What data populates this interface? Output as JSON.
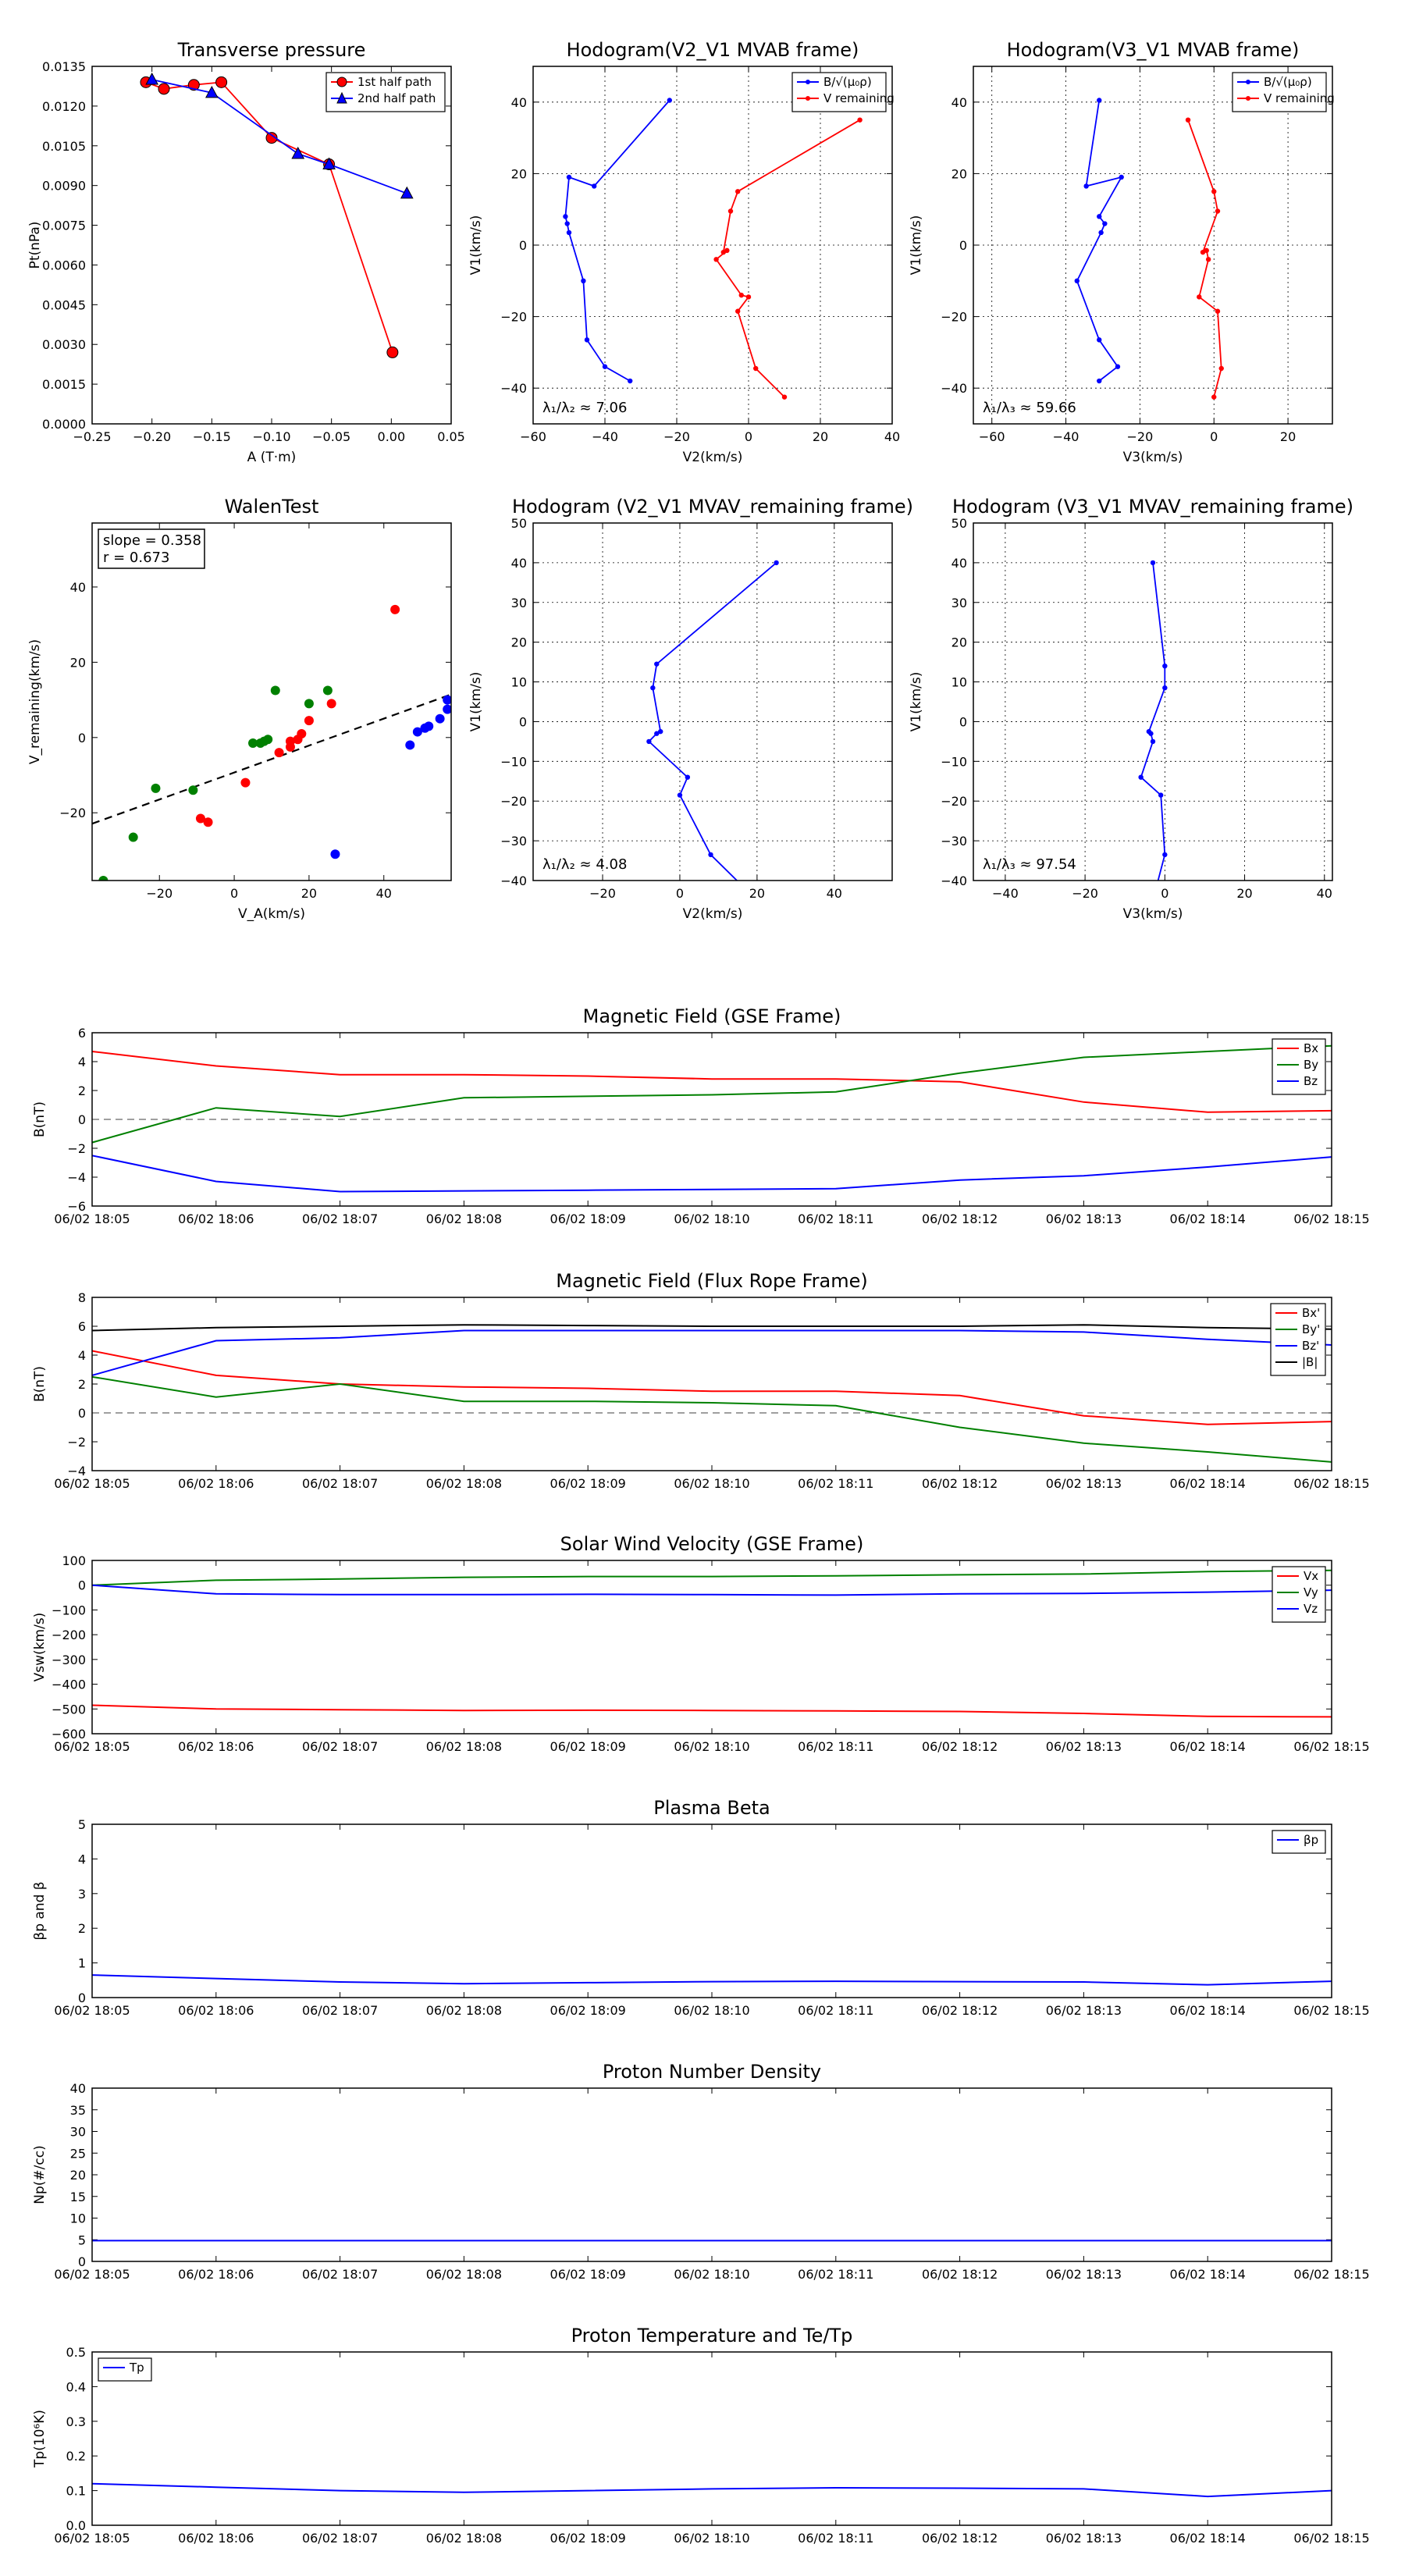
{
  "chart_data": [
    {
      "id": "transverse_pressure",
      "type": "scatter",
      "title": "Transverse pressure",
      "xlabel": "A (T·m)",
      "ylabel": "Pt(nPa)",
      "xlim": [
        -0.25,
        0.05
      ],
      "ylim": [
        0.0,
        0.0135
      ],
      "xticks": [
        -0.25,
        -0.2,
        -0.15,
        -0.1,
        -0.05,
        0.0,
        0.05
      ],
      "xtick_labels": [
        "−0.25",
        "−0.20",
        "−0.15",
        "−0.10",
        "−0.05",
        "0.00",
        "0.05"
      ],
      "yticks": [
        0,
        0.0015,
        0.003,
        0.0045,
        0.006,
        0.0075,
        0.009,
        0.0105,
        0.012,
        0.0135
      ],
      "ytick_labels": [
        "0.0000",
        "0.0015",
        "0.0030",
        "0.0045",
        "0.0060",
        "0.0075",
        "0.0090",
        "0.0105",
        "0.0120",
        "0.0135"
      ],
      "grid": false,
      "legend": "top-right",
      "series": [
        {
          "name": "1st half path",
          "color": "#ff0000",
          "marker": "circle",
          "x": [
            -0.205,
            -0.19,
            -0.165,
            -0.142,
            -0.1,
            -0.052,
            0.001
          ],
          "y": [
            0.0129,
            0.01265,
            0.0128,
            0.0129,
            0.0108,
            0.0098,
            0.0027
          ]
        },
        {
          "name": "2nd half path",
          "color": "#0000ff",
          "marker": "triangle",
          "x": [
            -0.2,
            -0.15,
            -0.078,
            -0.052,
            0.013
          ],
          "y": [
            0.013,
            0.0125,
            0.0102,
            0.0098,
            0.0087
          ]
        }
      ]
    },
    {
      "id": "hodogram_v2v1_mvab",
      "type": "line",
      "title": "Hodogram(V2_V1 MVAB frame)",
      "xlabel": "V2(km/s)",
      "ylabel": "V1(km/s)",
      "xlim": [
        -60,
        40
      ],
      "ylim": [
        -50,
        50
      ],
      "xticks": [
        -60,
        -40,
        -20,
        0,
        20,
        40
      ],
      "xtick_labels": [
        "−60",
        "−40",
        "−20",
        "0",
        "20",
        "40"
      ],
      "yticks": [
        -40,
        -20,
        0,
        20,
        40
      ],
      "ytick_labels": [
        "−40",
        "−20",
        "0",
        "20",
        "40"
      ],
      "grid": true,
      "legend": "top-right",
      "annotation": "λ₁/λ₂ ≈ 7.06",
      "series": [
        {
          "name": "B/√(μ₀ρ)",
          "color": "#0000ff",
          "x": [
            -22,
            -43,
            -50,
            -51,
            -50.5,
            -50,
            -46,
            -45,
            -40,
            -33
          ],
          "y": [
            40.5,
            16.5,
            19,
            8,
            6,
            3.5,
            -10,
            -26.5,
            -34,
            -38
          ]
        },
        {
          "name": "V remaining",
          "color": "#ff0000",
          "x": [
            31,
            -3,
            -5,
            -7,
            -6,
            -9,
            -2,
            0,
            -3,
            2,
            10
          ],
          "y": [
            35,
            15,
            9.5,
            -2,
            -1.5,
            -4,
            -14,
            -14.5,
            -18.5,
            -34.5,
            -42.5
          ]
        }
      ]
    },
    {
      "id": "hodogram_v3v1_mvab",
      "type": "line",
      "title": "Hodogram(V3_V1 MVAB frame)",
      "xlabel": "V3(km/s)",
      "ylabel": "V1(km/s)",
      "xlim": [
        -65,
        32
      ],
      "ylim": [
        -50,
        50
      ],
      "xticks": [
        -60,
        -40,
        -20,
        0,
        20
      ],
      "xtick_labels": [
        "−60",
        "−40",
        "−20",
        "0",
        "20"
      ],
      "yticks": [
        -40,
        -20,
        0,
        20,
        40
      ],
      "ytick_labels": [
        "−40",
        "−20",
        "0",
        "20",
        "40"
      ],
      "grid": true,
      "legend": "top-right",
      "annotation": "λ₁/λ₃ ≈ 59.66",
      "series": [
        {
          "name": "B/√(μ₀ρ)",
          "color": "#0000ff",
          "x": [
            -31,
            -34.5,
            -25,
            -31,
            -29.5,
            -30.5,
            -37,
            -31,
            -26,
            -31
          ],
          "y": [
            40.5,
            16.5,
            19,
            8,
            6,
            3.5,
            -10,
            -26.5,
            -34,
            -38
          ]
        },
        {
          "name": "V remaining",
          "color": "#ff0000",
          "x": [
            -7,
            0,
            1,
            -3,
            -2,
            -1.5,
            -4,
            1,
            2,
            0
          ],
          "y": [
            35,
            15,
            9.5,
            -2,
            -1.5,
            -4,
            -14.5,
            -18.5,
            -34.5,
            -42.5
          ]
        }
      ]
    },
    {
      "id": "walen_test",
      "type": "scatter",
      "title": "WalenTest",
      "xlabel": "V_A(km/s)",
      "ylabel": "V_remaining(km/s)",
      "xlim": [
        -38,
        58
      ],
      "ylim": [
        -38,
        57
      ],
      "xticks": [
        -20,
        0,
        20,
        40
      ],
      "xtick_labels": [
        "−20",
        "0",
        "20",
        "40"
      ],
      "yticks": [
        -20,
        0,
        20,
        40
      ],
      "ytick_labels": [
        "−20",
        "0",
        "20",
        "40"
      ],
      "grid": false,
      "annotation": [
        "slope = 0.358",
        "r = 0.673"
      ],
      "fit_line": {
        "slope": 0.358,
        "intercept": -9.3,
        "color": "#000000",
        "style": "dashed"
      },
      "series": [
        {
          "name": "",
          "color": "#ff0000",
          "x": [
            43,
            26,
            20,
            18,
            17,
            15,
            15,
            12,
            3,
            -7,
            -9
          ],
          "y": [
            34,
            9,
            4.5,
            1,
            -0.5,
            -1,
            -2.5,
            -4,
            -12,
            -22.5,
            -21.5
          ]
        },
        {
          "name": "",
          "color": "#008000",
          "x": [
            11,
            25,
            20,
            9,
            8,
            7,
            5,
            -21,
            -11,
            -27,
            -35
          ],
          "y": [
            12.5,
            12.5,
            9,
            -0.5,
            -1,
            -1.5,
            -1.5,
            -13.5,
            -14,
            -26.5,
            -38
          ]
        },
        {
          "name": "",
          "color": "#0000ff",
          "x": [
            57,
            57,
            55,
            52,
            51,
            49,
            47,
            27
          ],
          "y": [
            10,
            7.5,
            5,
            3,
            2.5,
            1.5,
            -2,
            -31
          ]
        }
      ]
    },
    {
      "id": "hodogram_v2v1_mvav",
      "type": "line",
      "title": "Hodogram (V2_V1 MVAV_remaining frame)",
      "xlabel": "V2(km/s)",
      "ylabel": "V1(km/s)",
      "xlim": [
        -38,
        55
      ],
      "ylim": [
        -40,
        50
      ],
      "xticks": [
        -20,
        0,
        20,
        40
      ],
      "xtick_labels": [
        "−20",
        "0",
        "20",
        "40"
      ],
      "yticks": [
        -40,
        -30,
        -20,
        -10,
        0,
        10,
        20,
        30,
        40,
        50
      ],
      "ytick_labels": [
        "−40",
        "−30",
        "−20",
        "−10",
        "0",
        "10",
        "20",
        "30",
        "40",
        "50"
      ],
      "grid": true,
      "annotation": "λ₁/λ₂ ≈ 4.08",
      "series": [
        {
          "name": "",
          "color": "#0000ff",
          "x": [
            25,
            -6,
            -7,
            -5,
            -6,
            -8,
            2,
            0,
            8,
            20
          ],
          "y": [
            40,
            14.5,
            8.5,
            -2.5,
            -3,
            -5,
            -14,
            -18.5,
            -33.5,
            -45
          ]
        }
      ]
    },
    {
      "id": "hodogram_v3v1_mvav",
      "type": "line",
      "title": "Hodogram (V3_V1 MVAV_remaining frame)",
      "xlabel": "V3(km/s)",
      "ylabel": "V1(km/s)",
      "xlim": [
        -48,
        42
      ],
      "ylim": [
        -40,
        50
      ],
      "xticks": [
        -40,
        -20,
        0,
        20,
        40
      ],
      "xtick_labels": [
        "−40",
        "−20",
        "0",
        "20",
        "40"
      ],
      "yticks": [
        -40,
        -30,
        -20,
        -10,
        0,
        10,
        20,
        30,
        40,
        50
      ],
      "ytick_labels": [
        "−40",
        "−30",
        "−20",
        "−10",
        "0",
        "10",
        "20",
        "30",
        "40",
        "50"
      ],
      "grid": true,
      "annotation": "λ₁/λ₃ ≈ 97.54",
      "series": [
        {
          "name": "",
          "color": "#0000ff",
          "x": [
            -3,
            0,
            0,
            -4,
            -3.5,
            -3,
            -6,
            -1,
            0,
            -3
          ],
          "y": [
            40,
            14,
            8.5,
            -2.5,
            -3,
            -5,
            -14,
            -18.5,
            -33.5,
            -45
          ]
        }
      ]
    },
    {
      "id": "magnetic_field_gse",
      "type": "line",
      "title": "Magnetic Field (GSE Frame)",
      "xlabel": "",
      "ylabel": "B(nT)",
      "ylim": [
        -6,
        6
      ],
      "yticks": [
        -6,
        -4,
        -2,
        0,
        2,
        4,
        6
      ],
      "ytick_labels": [
        "−6",
        "−4",
        "−2",
        "0",
        "2",
        "4",
        "6"
      ],
      "x": [
        0,
        1,
        2,
        3,
        4,
        5,
        6,
        7,
        8,
        9,
        10
      ],
      "time_labels": [
        "06/02 18:05",
        "06/02 18:06",
        "06/02 18:07",
        "06/02 18:08",
        "06/02 18:09",
        "06/02 18:10",
        "06/02 18:11",
        "06/02 18:12",
        "06/02 18:13",
        "06/02 18:14",
        "06/02 18:15"
      ],
      "zero_line": true,
      "legend": "top-right",
      "series": [
        {
          "name": "Bx",
          "color": "#ff0000",
          "values": [
            4.7,
            3.7,
            3.1,
            3.1,
            3.0,
            2.8,
            2.8,
            2.6,
            1.2,
            0.5,
            0.6
          ]
        },
        {
          "name": "By",
          "color": "#008000",
          "values": [
            -1.6,
            0.8,
            0.2,
            1.5,
            1.6,
            1.7,
            1.9,
            3.2,
            4.3,
            4.7,
            5.1
          ]
        },
        {
          "name": "Bz",
          "color": "#0000ff",
          "values": [
            -2.5,
            -4.3,
            -5.0,
            -4.95,
            -4.9,
            -4.85,
            -4.8,
            -4.2,
            -3.9,
            -3.3,
            -2.6
          ]
        }
      ]
    },
    {
      "id": "magnetic_field_flux_rope",
      "type": "line",
      "title": "Magnetic Field (Flux Rope Frame)",
      "xlabel": "",
      "ylabel": "B(nT)",
      "ylim": [
        -4,
        8
      ],
      "yticks": [
        -4,
        -2,
        0,
        2,
        4,
        6,
        8
      ],
      "ytick_labels": [
        "−4",
        "−2",
        "0",
        "2",
        "4",
        "6",
        "8"
      ],
      "x": [
        0,
        1,
        2,
        3,
        4,
        5,
        6,
        7,
        8,
        9,
        10
      ],
      "time_labels": [
        "06/02 18:05",
        "06/02 18:06",
        "06/02 18:07",
        "06/02 18:08",
        "06/02 18:09",
        "06/02 18:10",
        "06/02 18:11",
        "06/02 18:12",
        "06/02 18:13",
        "06/02 18:14",
        "06/02 18:15"
      ],
      "zero_line": true,
      "legend": "top-right",
      "series": [
        {
          "name": "Bx'",
          "color": "#ff0000",
          "values": [
            4.3,
            2.6,
            2.0,
            1.8,
            1.7,
            1.5,
            1.5,
            1.2,
            -0.2,
            -0.8,
            -0.6
          ]
        },
        {
          "name": "By'",
          "color": "#008000",
          "values": [
            2.5,
            1.1,
            2.0,
            0.8,
            0.8,
            0.7,
            0.5,
            -1.0,
            -2.1,
            -2.7,
            -3.4
          ]
        },
        {
          "name": "Bz'",
          "color": "#0000ff",
          "values": [
            2.6,
            5.0,
            5.2,
            5.7,
            5.7,
            5.7,
            5.7,
            5.7,
            5.6,
            5.1,
            4.7
          ]
        },
        {
          "name": "|B|",
          "color": "#000000",
          "values": [
            5.7,
            5.9,
            6.0,
            6.1,
            6.05,
            6.0,
            6.0,
            6.0,
            6.1,
            5.9,
            5.8
          ]
        }
      ]
    },
    {
      "id": "solar_wind_velocity",
      "type": "line",
      "title": "Solar Wind Velocity (GSE Frame)",
      "xlabel": "",
      "ylabel": "Vsw(km/s)",
      "ylim": [
        -600,
        100
      ],
      "yticks": [
        -600,
        -500,
        -400,
        -300,
        -200,
        -100,
        0,
        100
      ],
      "ytick_labels": [
        "−600",
        "−500",
        "−400",
        "−300",
        "−200",
        "−100",
        "0",
        "100"
      ],
      "x": [
        0,
        1,
        2,
        3,
        4,
        5,
        6,
        7,
        8,
        9,
        10
      ],
      "time_labels": [
        "06/02 18:05",
        "06/02 18:06",
        "06/02 18:07",
        "06/02 18:08",
        "06/02 18:09",
        "06/02 18:10",
        "06/02 18:11",
        "06/02 18:12",
        "06/02 18:13",
        "06/02 18:14",
        "06/02 18:15"
      ],
      "legend": "top-right",
      "series": [
        {
          "name": "Vx",
          "color": "#ff0000",
          "values": [
            -485,
            -500,
            -503,
            -506,
            -505,
            -506,
            -508,
            -510,
            -518,
            -530,
            -532
          ]
        },
        {
          "name": "Vy",
          "color": "#008000",
          "values": [
            0,
            20,
            25,
            32,
            35,
            35,
            38,
            42,
            45,
            55,
            60
          ]
        },
        {
          "name": "Vz",
          "color": "#0000ff",
          "values": [
            0,
            -35,
            -38,
            -38,
            -37,
            -38,
            -40,
            -35,
            -33,
            -28,
            -20
          ]
        }
      ]
    },
    {
      "id": "plasma_beta",
      "type": "line",
      "title": "Plasma Beta",
      "xlabel": "",
      "ylabel": "βp and β",
      "ylim": [
        0,
        5
      ],
      "yticks": [
        0,
        1,
        2,
        3,
        4,
        5
      ],
      "ytick_labels": [
        "0",
        "1",
        "2",
        "3",
        "4",
        "5"
      ],
      "x": [
        0,
        1,
        2,
        3,
        4,
        5,
        6,
        7,
        8,
        9,
        10
      ],
      "time_labels": [
        "06/02 18:05",
        "06/02 18:06",
        "06/02 18:07",
        "06/02 18:08",
        "06/02 18:09",
        "06/02 18:10",
        "06/02 18:11",
        "06/02 18:12",
        "06/02 18:13",
        "06/02 18:14",
        "06/02 18:15"
      ],
      "legend": "top-right",
      "series": [
        {
          "name": "βp",
          "color": "#0000ff",
          "values": [
            0.65,
            0.55,
            0.45,
            0.4,
            0.43,
            0.46,
            0.47,
            0.46,
            0.45,
            0.37,
            0.47
          ]
        }
      ]
    },
    {
      "id": "proton_number_density",
      "type": "line",
      "title": "Proton Number Density",
      "xlabel": "",
      "ylabel": "Np(#/cc)",
      "ylim": [
        0,
        40
      ],
      "yticks": [
        0,
        5,
        10,
        15,
        20,
        25,
        30,
        35,
        40
      ],
      "ytick_labels": [
        "0",
        "5",
        "10",
        "15",
        "20",
        "25",
        "30",
        "35",
        "40"
      ],
      "x": [
        0,
        1,
        2,
        3,
        4,
        5,
        6,
        7,
        8,
        9,
        10
      ],
      "time_labels": [
        "06/02 18:05",
        "06/02 18:06",
        "06/02 18:07",
        "06/02 18:08",
        "06/02 18:09",
        "06/02 18:10",
        "06/02 18:11",
        "06/02 18:12",
        "06/02 18:13",
        "06/02 18:14",
        "06/02 18:15"
      ],
      "series": [
        {
          "name": "",
          "color": "#0000ff",
          "values": [
            4.8,
            4.8,
            4.8,
            4.8,
            4.8,
            4.8,
            4.8,
            4.8,
            4.8,
            4.8,
            4.8
          ]
        }
      ]
    },
    {
      "id": "proton_temperature",
      "type": "line",
      "title": "Proton Temperature and Te/Tp",
      "xlabel": "",
      "ylabel": "Tp(10⁶K)",
      "ylim": [
        0,
        0.5
      ],
      "yticks": [
        0,
        0.1,
        0.2,
        0.3,
        0.4,
        0.5
      ],
      "ytick_labels": [
        "0.0",
        "0.1",
        "0.2",
        "0.3",
        "0.4",
        "0.5"
      ],
      "x": [
        0,
        1,
        2,
        3,
        4,
        5,
        6,
        7,
        8,
        9,
        10
      ],
      "time_labels": [
        "06/02 18:05",
        "06/02 18:06",
        "06/02 18:07",
        "06/02 18:08",
        "06/02 18:09",
        "06/02 18:10",
        "06/02 18:11",
        "06/02 18:12",
        "06/02 18:13",
        "06/02 18:14",
        "06/02 18:15"
      ],
      "legend": "top-left",
      "series": [
        {
          "name": "Tp",
          "color": "#0000ff",
          "values": [
            0.12,
            0.11,
            0.1,
            0.095,
            0.1,
            0.105,
            0.108,
            0.107,
            0.105,
            0.083,
            0.1
          ]
        }
      ]
    }
  ]
}
